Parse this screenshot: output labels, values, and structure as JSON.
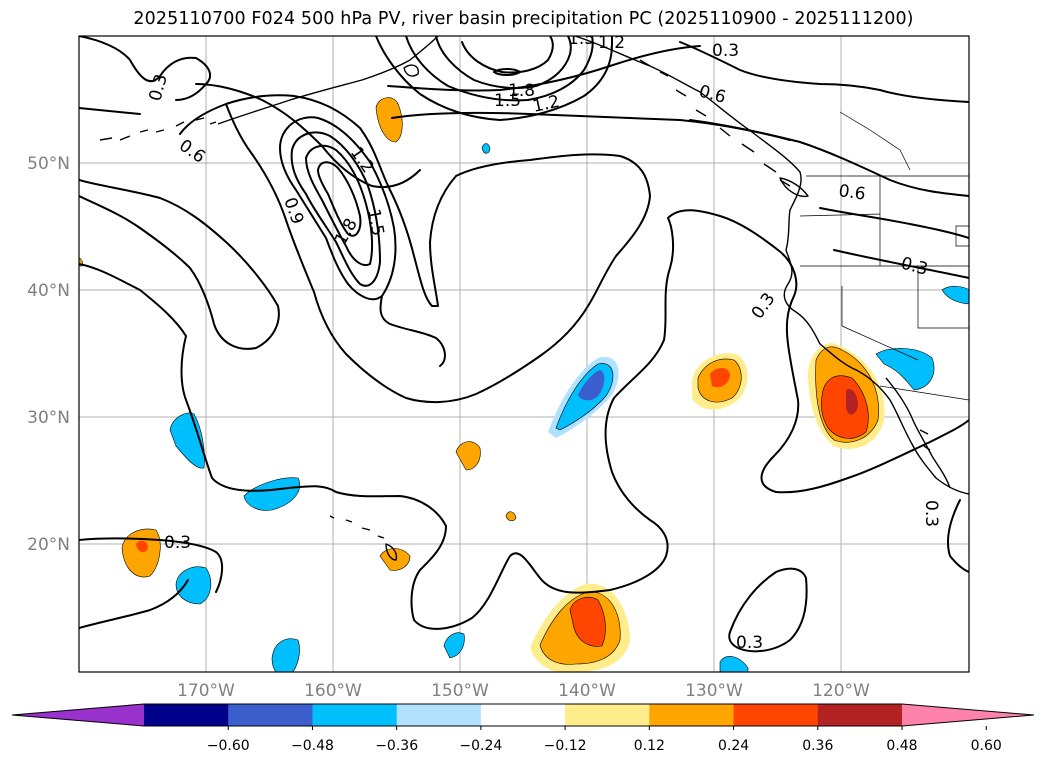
{
  "title": "2025110700 F024 500 hPa PV, river basin precipitation PC (2025110900 - 2025111200)",
  "lat_ticks": [
    "50°N",
    "40°N",
    "30°N",
    "20°N"
  ],
  "lon_ticks": [
    "170°W",
    "160°W",
    "150°W",
    "140°W",
    "130°W",
    "120°W"
  ],
  "colorbar": {
    "ticks": [
      "−0.60",
      "−0.48",
      "−0.36",
      "−0.24",
      "−0.12",
      "0.12",
      "0.24",
      "0.36",
      "0.48",
      "0.60"
    ],
    "colors": [
      "#9932cc",
      "#00008b",
      "#3a5fcd",
      "#00bfff",
      "#b0e2ff",
      "#ffffff",
      "#ffec8b",
      "#ffa500",
      "#ff4500",
      "#b22222",
      "#ff82ab"
    ]
  },
  "contour_labels": [
    "0.3",
    "0.6",
    "0.9",
    "1.2",
    "1.5",
    "1.8",
    "1.5",
    "1.2",
    "1.8",
    "1.5",
    "1.2",
    "0.3",
    "0.6",
    "0.6",
    "0.3",
    "0.3",
    "0.3",
    "0.3",
    "0.3"
  ],
  "colors": {
    "gridline": "#b0b0b0",
    "contour": "#000000",
    "tick_label": "#808080"
  }
}
